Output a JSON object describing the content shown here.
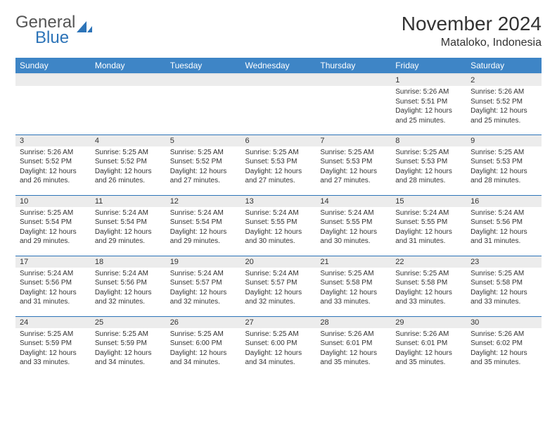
{
  "brand": {
    "part1": "General",
    "part2": "Blue"
  },
  "title": "November 2024",
  "location": "Mataloko, Indonesia",
  "colors": {
    "header_bg": "#3e85c6",
    "header_text": "#ffffff",
    "row_divider": "#2d74b8",
    "daynum_bg": "#ececec",
    "text": "#333333",
    "brand_accent": "#2d74b8"
  },
  "weekdays": [
    "Sunday",
    "Monday",
    "Tuesday",
    "Wednesday",
    "Thursday",
    "Friday",
    "Saturday"
  ],
  "weeks": [
    [
      {
        "n": "",
        "sr": "",
        "ss": "",
        "dl": ""
      },
      {
        "n": "",
        "sr": "",
        "ss": "",
        "dl": ""
      },
      {
        "n": "",
        "sr": "",
        "ss": "",
        "dl": ""
      },
      {
        "n": "",
        "sr": "",
        "ss": "",
        "dl": ""
      },
      {
        "n": "",
        "sr": "",
        "ss": "",
        "dl": ""
      },
      {
        "n": "1",
        "sr": "Sunrise: 5:26 AM",
        "ss": "Sunset: 5:51 PM",
        "dl": "Daylight: 12 hours and 25 minutes."
      },
      {
        "n": "2",
        "sr": "Sunrise: 5:26 AM",
        "ss": "Sunset: 5:52 PM",
        "dl": "Daylight: 12 hours and 25 minutes."
      }
    ],
    [
      {
        "n": "3",
        "sr": "Sunrise: 5:26 AM",
        "ss": "Sunset: 5:52 PM",
        "dl": "Daylight: 12 hours and 26 minutes."
      },
      {
        "n": "4",
        "sr": "Sunrise: 5:25 AM",
        "ss": "Sunset: 5:52 PM",
        "dl": "Daylight: 12 hours and 26 minutes."
      },
      {
        "n": "5",
        "sr": "Sunrise: 5:25 AM",
        "ss": "Sunset: 5:52 PM",
        "dl": "Daylight: 12 hours and 27 minutes."
      },
      {
        "n": "6",
        "sr": "Sunrise: 5:25 AM",
        "ss": "Sunset: 5:53 PM",
        "dl": "Daylight: 12 hours and 27 minutes."
      },
      {
        "n": "7",
        "sr": "Sunrise: 5:25 AM",
        "ss": "Sunset: 5:53 PM",
        "dl": "Daylight: 12 hours and 27 minutes."
      },
      {
        "n": "8",
        "sr": "Sunrise: 5:25 AM",
        "ss": "Sunset: 5:53 PM",
        "dl": "Daylight: 12 hours and 28 minutes."
      },
      {
        "n": "9",
        "sr": "Sunrise: 5:25 AM",
        "ss": "Sunset: 5:53 PM",
        "dl": "Daylight: 12 hours and 28 minutes."
      }
    ],
    [
      {
        "n": "10",
        "sr": "Sunrise: 5:25 AM",
        "ss": "Sunset: 5:54 PM",
        "dl": "Daylight: 12 hours and 29 minutes."
      },
      {
        "n": "11",
        "sr": "Sunrise: 5:24 AM",
        "ss": "Sunset: 5:54 PM",
        "dl": "Daylight: 12 hours and 29 minutes."
      },
      {
        "n": "12",
        "sr": "Sunrise: 5:24 AM",
        "ss": "Sunset: 5:54 PM",
        "dl": "Daylight: 12 hours and 29 minutes."
      },
      {
        "n": "13",
        "sr": "Sunrise: 5:24 AM",
        "ss": "Sunset: 5:55 PM",
        "dl": "Daylight: 12 hours and 30 minutes."
      },
      {
        "n": "14",
        "sr": "Sunrise: 5:24 AM",
        "ss": "Sunset: 5:55 PM",
        "dl": "Daylight: 12 hours and 30 minutes."
      },
      {
        "n": "15",
        "sr": "Sunrise: 5:24 AM",
        "ss": "Sunset: 5:55 PM",
        "dl": "Daylight: 12 hours and 31 minutes."
      },
      {
        "n": "16",
        "sr": "Sunrise: 5:24 AM",
        "ss": "Sunset: 5:56 PM",
        "dl": "Daylight: 12 hours and 31 minutes."
      }
    ],
    [
      {
        "n": "17",
        "sr": "Sunrise: 5:24 AM",
        "ss": "Sunset: 5:56 PM",
        "dl": "Daylight: 12 hours and 31 minutes."
      },
      {
        "n": "18",
        "sr": "Sunrise: 5:24 AM",
        "ss": "Sunset: 5:56 PM",
        "dl": "Daylight: 12 hours and 32 minutes."
      },
      {
        "n": "19",
        "sr": "Sunrise: 5:24 AM",
        "ss": "Sunset: 5:57 PM",
        "dl": "Daylight: 12 hours and 32 minutes."
      },
      {
        "n": "20",
        "sr": "Sunrise: 5:24 AM",
        "ss": "Sunset: 5:57 PM",
        "dl": "Daylight: 12 hours and 32 minutes."
      },
      {
        "n": "21",
        "sr": "Sunrise: 5:25 AM",
        "ss": "Sunset: 5:58 PM",
        "dl": "Daylight: 12 hours and 33 minutes."
      },
      {
        "n": "22",
        "sr": "Sunrise: 5:25 AM",
        "ss": "Sunset: 5:58 PM",
        "dl": "Daylight: 12 hours and 33 minutes."
      },
      {
        "n": "23",
        "sr": "Sunrise: 5:25 AM",
        "ss": "Sunset: 5:58 PM",
        "dl": "Daylight: 12 hours and 33 minutes."
      }
    ],
    [
      {
        "n": "24",
        "sr": "Sunrise: 5:25 AM",
        "ss": "Sunset: 5:59 PM",
        "dl": "Daylight: 12 hours and 33 minutes."
      },
      {
        "n": "25",
        "sr": "Sunrise: 5:25 AM",
        "ss": "Sunset: 5:59 PM",
        "dl": "Daylight: 12 hours and 34 minutes."
      },
      {
        "n": "26",
        "sr": "Sunrise: 5:25 AM",
        "ss": "Sunset: 6:00 PM",
        "dl": "Daylight: 12 hours and 34 minutes."
      },
      {
        "n": "27",
        "sr": "Sunrise: 5:25 AM",
        "ss": "Sunset: 6:00 PM",
        "dl": "Daylight: 12 hours and 34 minutes."
      },
      {
        "n": "28",
        "sr": "Sunrise: 5:26 AM",
        "ss": "Sunset: 6:01 PM",
        "dl": "Daylight: 12 hours and 35 minutes."
      },
      {
        "n": "29",
        "sr": "Sunrise: 5:26 AM",
        "ss": "Sunset: 6:01 PM",
        "dl": "Daylight: 12 hours and 35 minutes."
      },
      {
        "n": "30",
        "sr": "Sunrise: 5:26 AM",
        "ss": "Sunset: 6:02 PM",
        "dl": "Daylight: 12 hours and 35 minutes."
      }
    ]
  ]
}
